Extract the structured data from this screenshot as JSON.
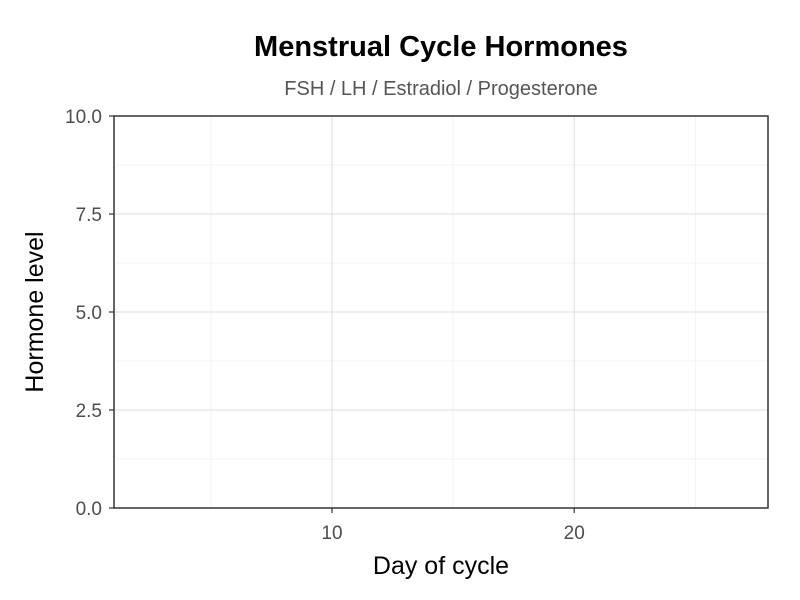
{
  "chart_data": {
    "type": "line",
    "title": "Menstrual Cycle Hormones",
    "subtitle": "FSH / LH / Estradiol / Progesterone",
    "xlabel": "Day of cycle",
    "ylabel": "Hormone level",
    "xlim": [
      1,
      28
    ],
    "ylim": [
      0,
      10
    ],
    "x_ticks": [
      10,
      20
    ],
    "x_tick_labels": [
      "10",
      "20"
    ],
    "x_minor_ticks": [
      5,
      15,
      25
    ],
    "y_ticks": [
      0,
      2.5,
      5,
      7.5,
      10
    ],
    "y_tick_labels": [
      "0.0",
      "2.5",
      "5.0",
      "7.5",
      "10.0"
    ],
    "y_minor_ticks": [
      1.25,
      3.75,
      6.25,
      8.75
    ],
    "grid": true,
    "series": []
  }
}
